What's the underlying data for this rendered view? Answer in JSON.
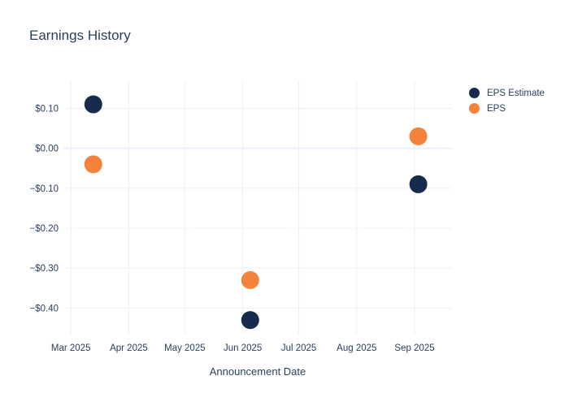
{
  "chart": {
    "title": "Earnings History"
  },
  "colors": {
    "background": "#ffffff",
    "font": "#2a3f5f",
    "grid": "#ebf0f8",
    "eps_estimate": "#162b4d",
    "eps": "#f5823a"
  },
  "chart_data": {
    "type": "scatter",
    "title": "Earnings History",
    "xlabel": "Announcement Date",
    "ylabel": "",
    "grid": true,
    "legend_position": "right",
    "xlim": [
      "2025-02-25",
      "2025-09-21"
    ],
    "ylim": [
      -0.452,
      0.168
    ],
    "x_ticks": [
      {
        "label": "Mar 2025",
        "date": "2025-03-01"
      },
      {
        "label": "Apr 2025",
        "date": "2025-04-01"
      },
      {
        "label": "May 2025",
        "date": "2025-05-01"
      },
      {
        "label": "Jun 2025",
        "date": "2025-06-01"
      },
      {
        "label": "Jul 2025",
        "date": "2025-07-01"
      },
      {
        "label": "Aug 2025",
        "date": "2025-08-01"
      },
      {
        "label": "Sep 2025",
        "date": "2025-09-01"
      }
    ],
    "y_ticks": [
      {
        "label": "$0.10",
        "value": 0.1
      },
      {
        "label": "$0.00",
        "value": 0.0
      },
      {
        "label": "−$0.10",
        "value": -0.1
      },
      {
        "label": "−$0.20",
        "value": -0.2
      },
      {
        "label": "−$0.30",
        "value": -0.3
      },
      {
        "label": "−$0.40",
        "value": -0.4
      }
    ],
    "series": [
      {
        "name": "EPS Estimate",
        "color": "#162b4d",
        "marker_size": 22,
        "points": [
          {
            "date": "2025-03-13",
            "value": 0.11
          },
          {
            "date": "2025-06-05",
            "value": -0.43
          },
          {
            "date": "2025-09-03",
            "value": -0.09
          }
        ]
      },
      {
        "name": "EPS",
        "color": "#f5823a",
        "marker_size": 22,
        "points": [
          {
            "date": "2025-03-13",
            "value": -0.04
          },
          {
            "date": "2025-06-05",
            "value": -0.33
          },
          {
            "date": "2025-09-03",
            "value": 0.03
          }
        ]
      }
    ]
  }
}
